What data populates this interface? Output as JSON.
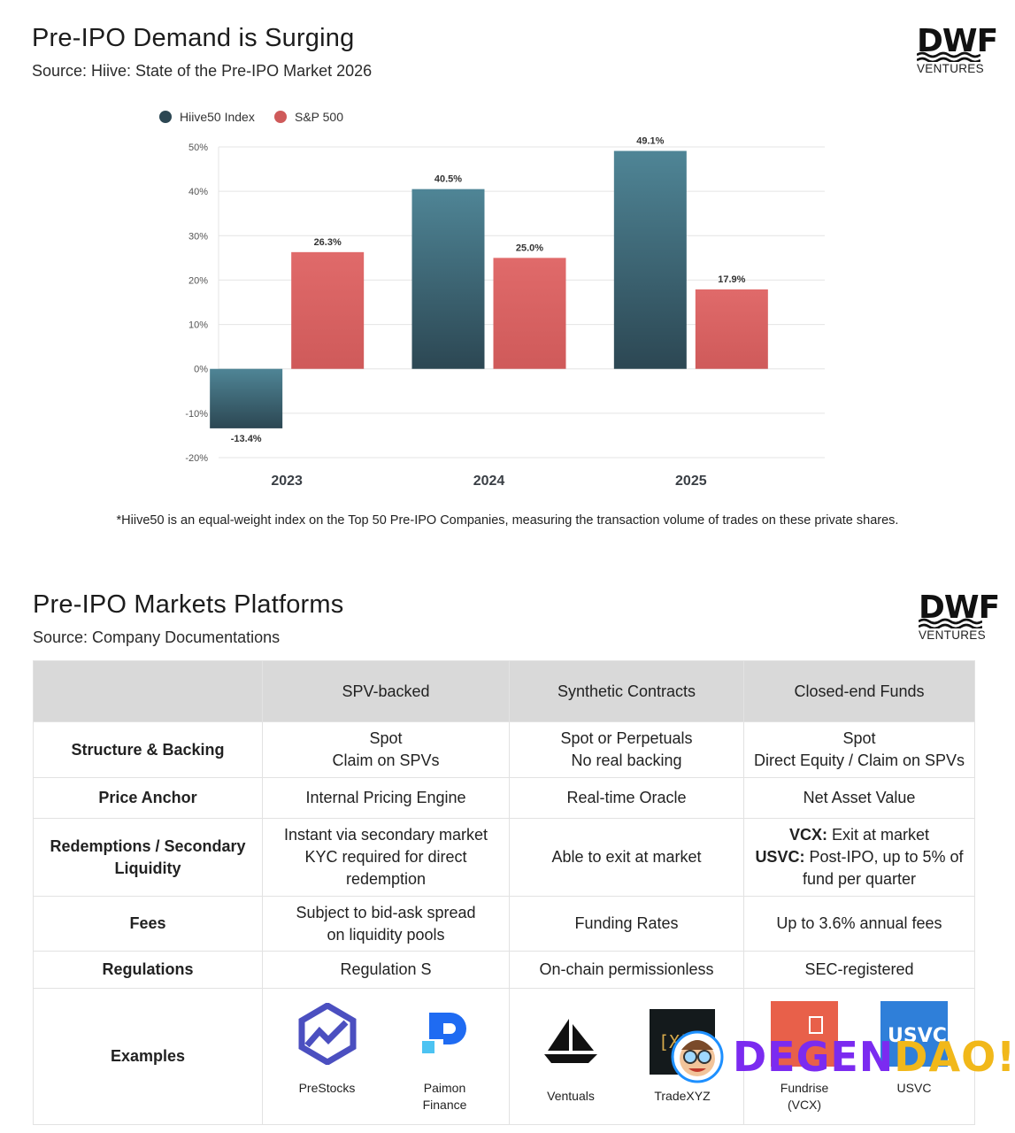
{
  "section1": {
    "title": "Pre-IPO Demand is Surging",
    "source": "Source:  Hiive: State of the Pre-IPO Market 2026",
    "footnote": "*Hiive50 is an equal-weight index on the Top 50 Pre-IPO Companies, measuring the transaction volume of trades on these private shares."
  },
  "logo": {
    "wordmark": "DWF",
    "sub": "VENTURES"
  },
  "chart_data": {
    "type": "bar",
    "categories": [
      "2023",
      "2024",
      "2025"
    ],
    "series": [
      {
        "name": "Hiive50 Index",
        "values": [
          -13.4,
          40.5,
          49.1
        ],
        "labels": [
          "-13.4%",
          "40.5%",
          "49.1%"
        ],
        "color_top": "#4f8596",
        "color_bottom": "#2c4753"
      },
      {
        "name": "S&P 500",
        "values": [
          26.3,
          25.0,
          17.9
        ],
        "labels": [
          "26.3%",
          "25.0%",
          "17.9%"
        ],
        "color_top": "#e06a6a",
        "color_bottom": "#cf5a5a"
      }
    ],
    "ylim": [
      -20,
      50
    ],
    "yticks": [
      50,
      40,
      30,
      20,
      10,
      0,
      -10,
      -20
    ],
    "ytick_labels": [
      "50%",
      "40%",
      "30%",
      "20%",
      "10%",
      "0%",
      "-10%",
      "-20%"
    ],
    "grid": true,
    "legend": "top-left",
    "title": "",
    "xlabel": "",
    "ylabel": ""
  },
  "section2": {
    "title": "Pre-IPO Markets Platforms",
    "source": "Source: Company Documentations",
    "columns": [
      "",
      "SPV-backed",
      "Synthetic Contracts",
      "Closed-end Funds"
    ],
    "rows": [
      {
        "label": "Structure & Backing",
        "cells": [
          [
            "Spot",
            "Claim on SPVs"
          ],
          [
            "Spot or Perpetuals",
            "No real backing"
          ],
          [
            "Spot",
            "Direct Equity / Claim on SPVs"
          ]
        ]
      },
      {
        "label": "Price Anchor",
        "cells": [
          [
            "Internal Pricing Engine"
          ],
          [
            "Real-time Oracle"
          ],
          [
            "Net Asset Value"
          ]
        ]
      },
      {
        "label": "Redemptions / Secondary Liquidity",
        "cells": [
          [
            "Instant via secondary market",
            "KYC required for direct",
            "redemption"
          ],
          [
            "Able to exit at market"
          ],
          [
            {
              "b": "VCX:",
              "t": " Exit at market"
            },
            {
              "b": "USVC:",
              "t": " Post-IPO, up to 5% of"
            },
            "fund per quarter"
          ]
        ]
      },
      {
        "label": "Fees",
        "cells": [
          [
            "Subject to bid-ask spread",
            "on liquidity pools"
          ],
          [
            "Funding Rates"
          ],
          [
            "Up to 3.6% annual fees"
          ]
        ]
      },
      {
        "label": "Regulations",
        "cells": [
          [
            "Regulation S"
          ],
          [
            "On-chain permissionless"
          ],
          [
            "SEC-registered"
          ]
        ]
      }
    ],
    "examples": {
      "label": "Examples",
      "groups": [
        [
          {
            "name": [
              "PreStocks"
            ],
            "icon": "prestocks-logo-icon"
          },
          {
            "name": [
              "Paimon",
              "Finance"
            ],
            "icon": "paimon-logo-icon"
          }
        ],
        [
          {
            "name": [
              "Ventuals"
            ],
            "icon": "ventuals-logo-icon"
          },
          {
            "name": [
              "TradeXYZ"
            ],
            "icon": "tradexyz-logo-icon"
          }
        ],
        [
          {
            "name": [
              "Fundrise",
              "(VCX)"
            ],
            "icon": "fundrise-logo-icon"
          },
          {
            "name": [
              "USVC"
            ],
            "icon": "usvc-logo-icon"
          }
        ]
      ]
    }
  },
  "watermark": {
    "text_a": "DEGEN",
    "text_b": "DAO!"
  }
}
